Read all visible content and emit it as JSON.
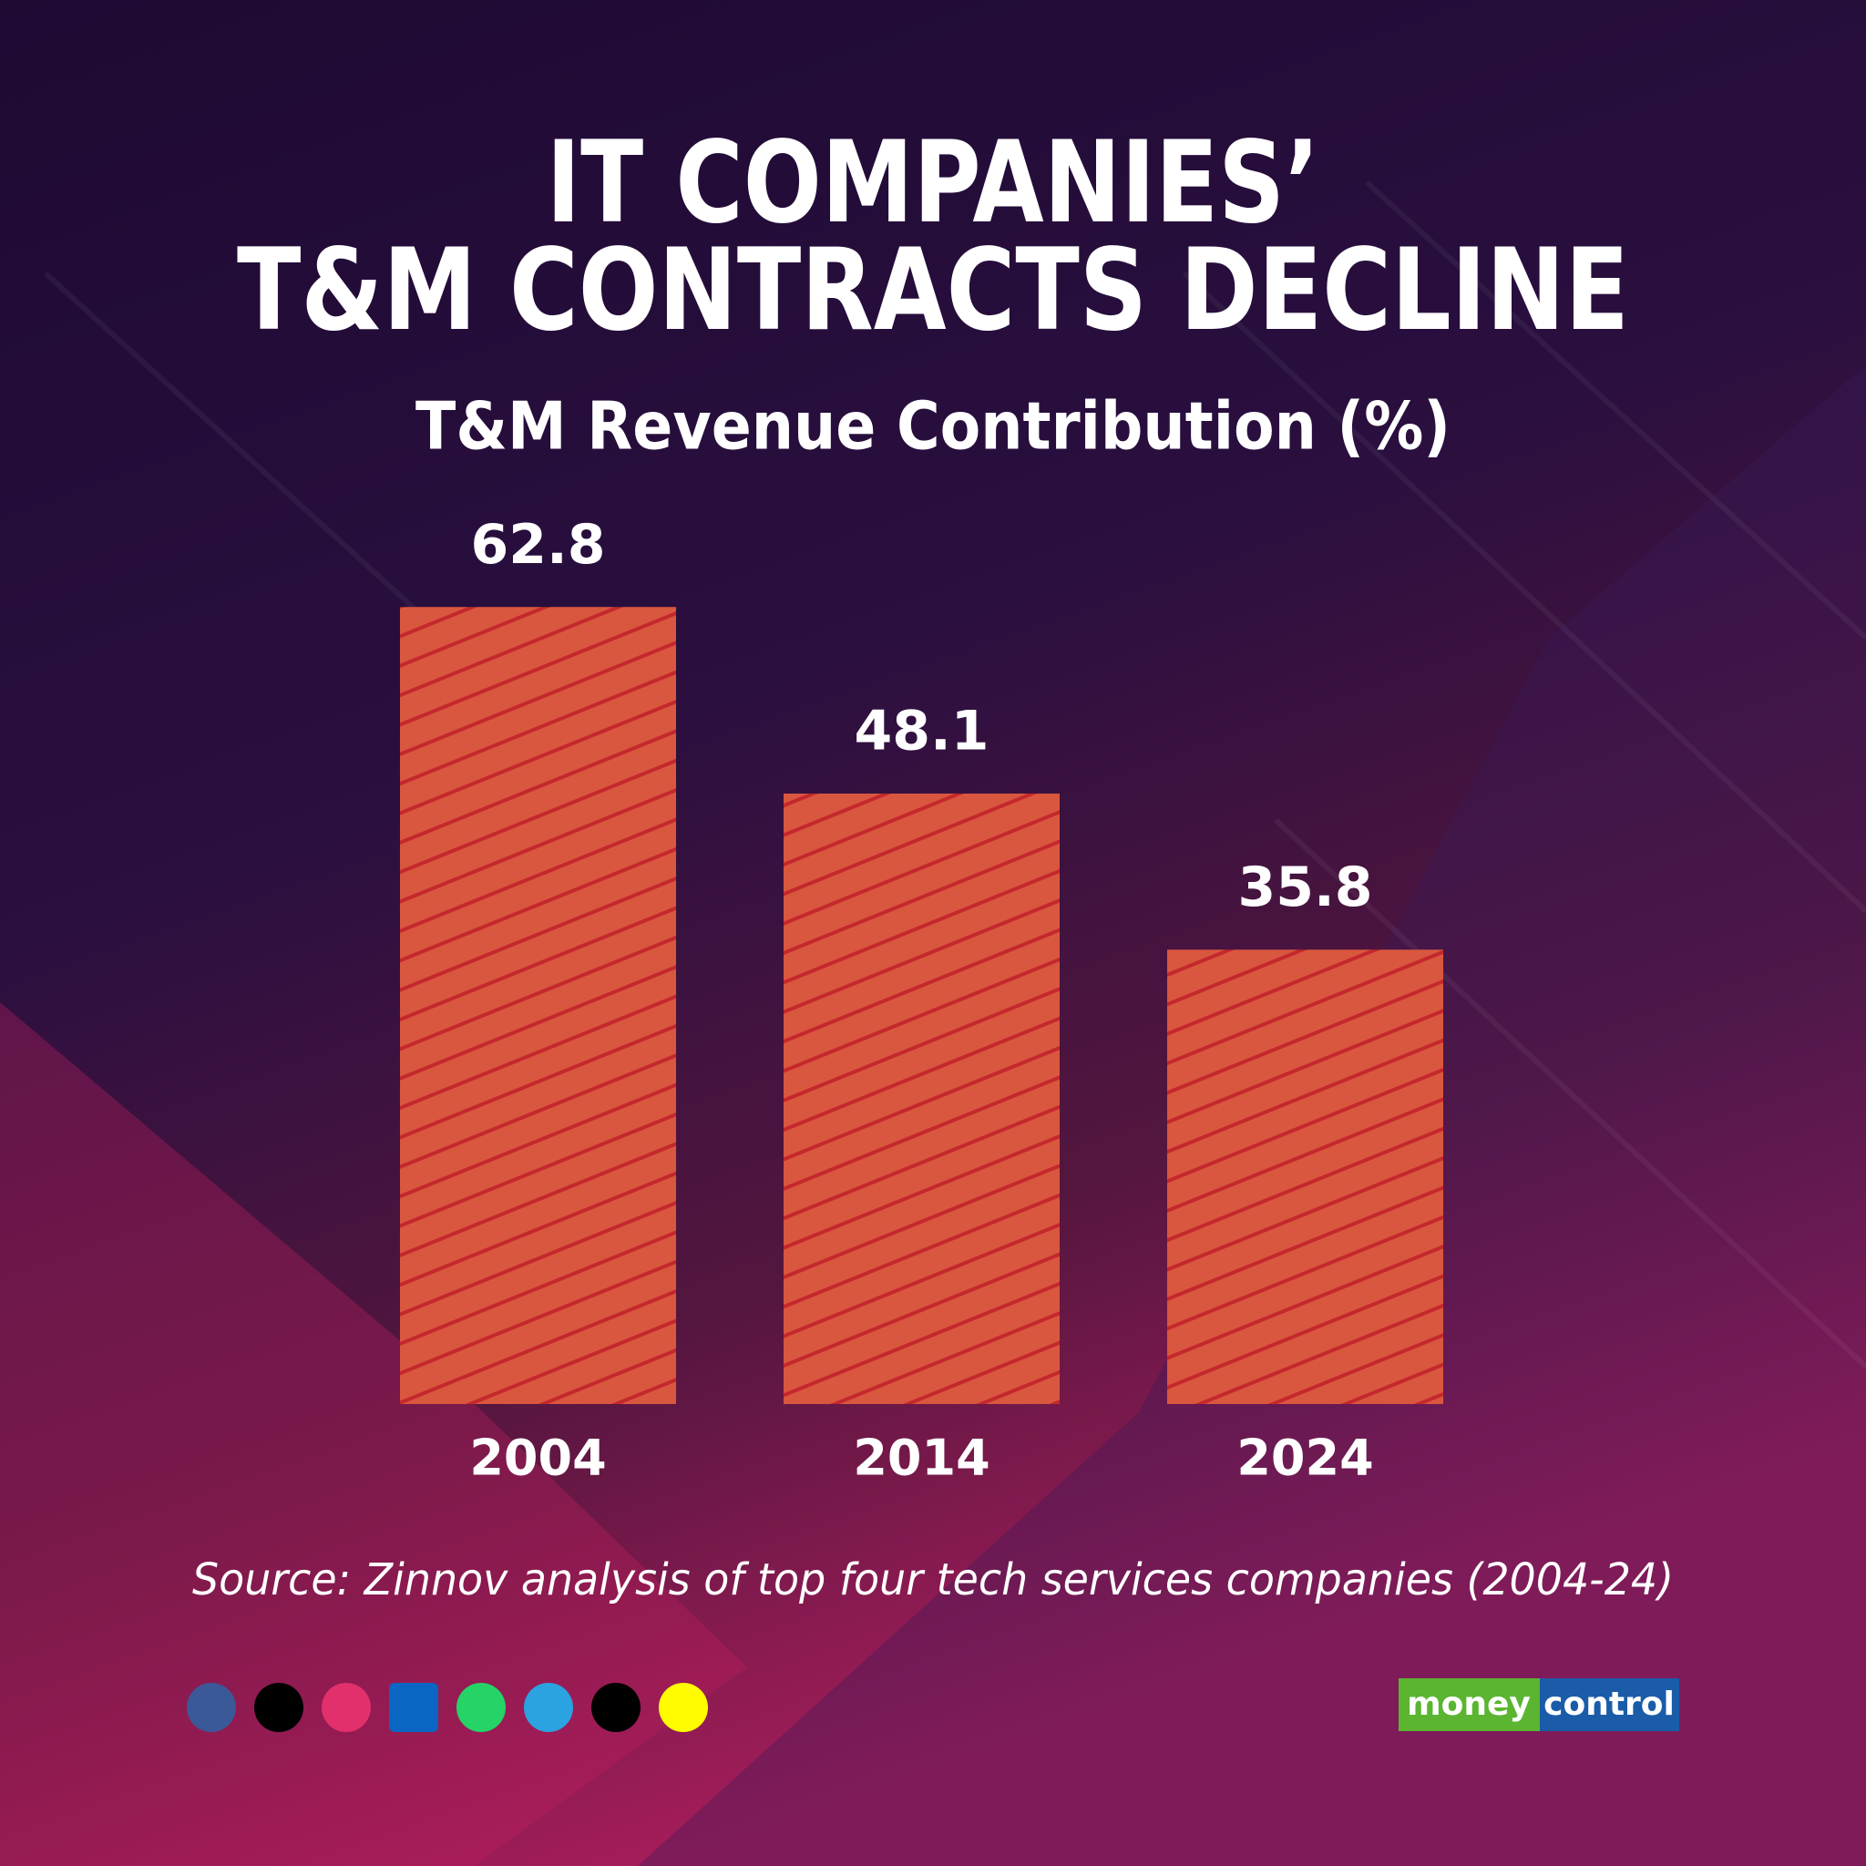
{
  "chart_data": {
    "type": "bar",
    "title": [
      "IT COMPANIES’",
      "T&M CONTRACTS DECLINE"
    ],
    "subtitle": "T&M Revenue Contribution (%)",
    "categories": [
      "2004",
      "2014",
      "2024"
    ],
    "values": [
      62.8,
      48.1,
      35.8
    ],
    "color": "#d9573f",
    "hatch_color": "#c4282c",
    "source": "Source: Zinnov analysis of top four tech services companies (2004-24)"
  },
  "logo": [
    "money",
    "control"
  ]
}
